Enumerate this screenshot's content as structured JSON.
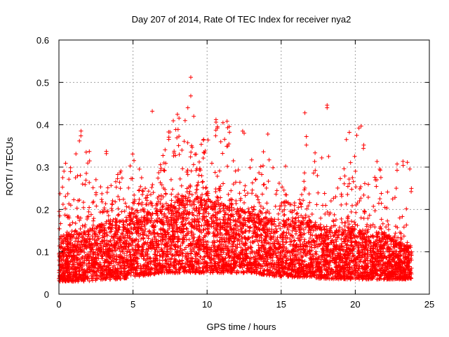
{
  "chart_data": {
    "type": "scatter",
    "title": "Day 207 of 2014, Rate Of TEC Index for receiver nya2",
    "xlabel": "GPS time / hours",
    "ylabel": "ROTI / TECUs",
    "xlim": [
      0,
      25
    ],
    "ylim": [
      0,
      0.6
    ],
    "xticks": [
      0,
      5,
      10,
      15,
      20,
      25
    ],
    "yticks": [
      0,
      0.1,
      0.2,
      0.3,
      0.4,
      0.5,
      0.6
    ],
    "xtick_labels": [
      "0",
      "5",
      "10",
      "15",
      "20",
      "25"
    ],
    "ytick_labels": [
      "0",
      "0.1",
      "0.2",
      "0.3",
      "0.4",
      "0.5",
      "0.6"
    ],
    "grid": true,
    "marker": "+",
    "color": "#ff0000",
    "series": [
      {
        "name": "ROTI",
        "x_range": [
          0,
          23.8
        ],
        "density_points": 6000,
        "envelope": {
          "x": [
            0,
            1,
            2,
            3,
            4,
            5,
            6,
            7,
            8,
            9,
            10,
            11,
            12,
            13,
            14,
            15,
            16,
            17,
            18,
            19,
            20,
            21,
            22,
            23,
            23.8
          ],
          "base_low": [
            0.03,
            0.03,
            0.03,
            0.035,
            0.035,
            0.04,
            0.045,
            0.05,
            0.05,
            0.05,
            0.05,
            0.05,
            0.05,
            0.05,
            0.045,
            0.04,
            0.04,
            0.04,
            0.035,
            0.035,
            0.035,
            0.035,
            0.035,
            0.035,
            0.035
          ],
          "base_high": [
            0.13,
            0.14,
            0.15,
            0.16,
            0.17,
            0.18,
            0.19,
            0.2,
            0.22,
            0.23,
            0.22,
            0.21,
            0.2,
            0.19,
            0.18,
            0.16,
            0.17,
            0.17,
            0.15,
            0.15,
            0.15,
            0.14,
            0.14,
            0.12,
            0.11
          ]
        },
        "notable_points": [
          {
            "x": 8.9,
            "y": 0.512
          },
          {
            "x": 8.9,
            "y": 0.468
          },
          {
            "x": 8.7,
            "y": 0.44
          },
          {
            "x": 6.3,
            "y": 0.432
          },
          {
            "x": 18.1,
            "y": 0.446
          },
          {
            "x": 18.1,
            "y": 0.44
          },
          {
            "x": 16.6,
            "y": 0.428
          },
          {
            "x": 9.1,
            "y": 0.42
          },
          {
            "x": 10.6,
            "y": 0.412
          },
          {
            "x": 10.7,
            "y": 0.395
          },
          {
            "x": 12.4,
            "y": 0.385
          },
          {
            "x": 12.5,
            "y": 0.38
          },
          {
            "x": 14.1,
            "y": 0.378
          },
          {
            "x": 16.7,
            "y": 0.372
          },
          {
            "x": 19.6,
            "y": 0.382
          },
          {
            "x": 20.1,
            "y": 0.375
          },
          {
            "x": 19.4,
            "y": 0.365
          },
          {
            "x": 3.2,
            "y": 0.337
          },
          {
            "x": 3.2,
            "y": 0.332
          },
          {
            "x": 8.3,
            "y": 0.34
          },
          {
            "x": 18.2,
            "y": 0.325
          },
          {
            "x": 16.7,
            "y": 0.352
          },
          {
            "x": 15.3,
            "y": 0.302
          },
          {
            "x": 0.6,
            "y": 0.237
          },
          {
            "x": 1.6,
            "y": 0.26
          },
          {
            "x": 22.0,
            "y": 0.205
          },
          {
            "x": 23.0,
            "y": 0.18
          }
        ]
      }
    ]
  }
}
